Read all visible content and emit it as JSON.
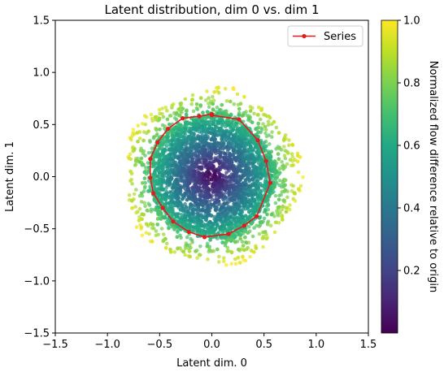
{
  "chart_data": {
    "type": "scatter",
    "title": "Latent distribution, dim 0 vs. dim 1",
    "xlabel": "Latent dim. 0",
    "ylabel": "Latent dim. 1",
    "xlim": [
      -1.5,
      1.5
    ],
    "ylim": [
      -1.5,
      1.5
    ],
    "xticks": [
      -1.5,
      -1.0,
      -0.5,
      0.0,
      0.5,
      1.0,
      1.5
    ],
    "yticks": [
      -1.5,
      -1.0,
      -0.5,
      0.0,
      0.5,
      1.0,
      1.5
    ],
    "xtick_labels": [
      "−1.5",
      "−1.0",
      "−0.5",
      "0.0",
      "0.5",
      "1.0",
      "1.5"
    ],
    "ytick_labels": [
      "−1.5",
      "−1.0",
      "−0.5",
      "0.0",
      "0.5",
      "1.0",
      "1.5"
    ],
    "grid": false,
    "legend": {
      "position": "top-right",
      "entries": [
        {
          "label": "Series",
          "color": "#e41a1c"
        }
      ]
    },
    "colorbar": {
      "label": "Normalized flow difference relative to origin",
      "range": [
        0.0,
        1.0
      ],
      "ticks": [
        0.2,
        0.4,
        0.6,
        0.8,
        1.0
      ],
      "tick_labels": [
        "0.2",
        "0.4",
        "0.6",
        "0.8",
        "1.0"
      ],
      "colormap": "viridis"
    },
    "scatter_cloud": {
      "center": [
        0.0,
        0.0
      ],
      "typical_radius": 0.6,
      "max_radius": 0.85,
      "color_value": "normalized distance from origin"
    },
    "series": [
      {
        "name": "Series",
        "color": "#e41a1c",
        "x": [
          0.0,
          0.26,
          0.44,
          0.52,
          0.56,
          0.43,
          0.31,
          0.16,
          -0.07,
          -0.22,
          -0.37,
          -0.47,
          -0.56,
          -0.59,
          -0.59,
          -0.52,
          -0.42,
          -0.28,
          -0.12,
          0.0
        ],
        "y": [
          0.59,
          0.55,
          0.35,
          0.15,
          -0.06,
          -0.38,
          -0.47,
          -0.55,
          -0.58,
          -0.53,
          -0.43,
          -0.3,
          -0.16,
          -0.01,
          0.17,
          0.33,
          0.46,
          0.56,
          0.58,
          0.6
        ]
      }
    ]
  }
}
